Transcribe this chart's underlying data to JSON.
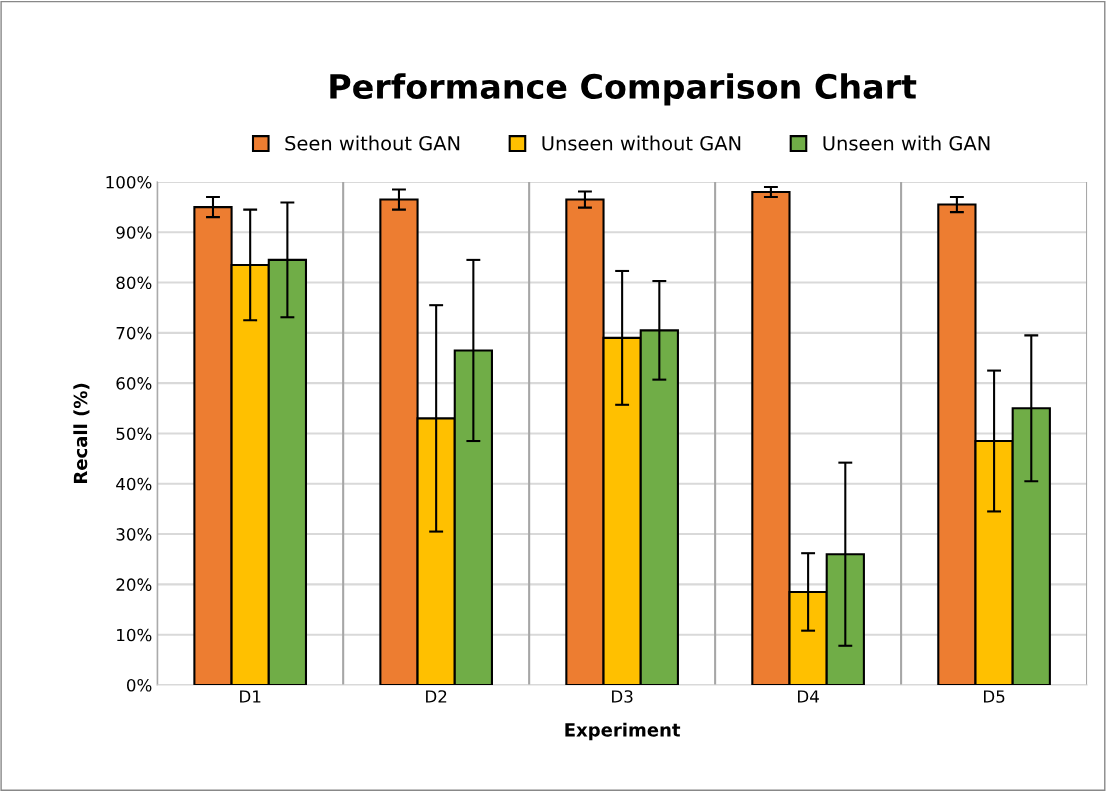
{
  "chart_data": {
    "type": "bar",
    "title": "Performance Comparison Chart",
    "xlabel": "Experiment",
    "ylabel": "Recall (%)",
    "categories": [
      "D1",
      "D2",
      "D3",
      "D4",
      "D5"
    ],
    "series": [
      {
        "name": "Seen without GAN",
        "color": "#ed7d31",
        "values": [
          95,
          96.5,
          96.5,
          98,
          95.5
        ],
        "errors": [
          2,
          2,
          1.6,
          1,
          1.5
        ]
      },
      {
        "name": "Unseen without GAN",
        "color": "#ffc000",
        "values": [
          83.5,
          53,
          69,
          18.5,
          48.5
        ],
        "errors": [
          11,
          22.5,
          13.3,
          7.7,
          14
        ]
      },
      {
        "name": "Unseen with GAN",
        "color": "#70ad47",
        "values": [
          84.5,
          66.5,
          70.5,
          26,
          55
        ],
        "errors": [
          11.4,
          18,
          9.8,
          18.2,
          14.5
        ]
      }
    ],
    "ylim": [
      0,
      100
    ],
    "yticks": [
      {
        "value": 0,
        "label": "0%"
      },
      {
        "value": 10,
        "label": "10%"
      },
      {
        "value": 20,
        "label": "20%"
      },
      {
        "value": 30,
        "label": "30%"
      },
      {
        "value": 40,
        "label": "40%"
      },
      {
        "value": 50,
        "label": "50%"
      },
      {
        "value": 60,
        "label": "60%"
      },
      {
        "value": 70,
        "label": "70%"
      },
      {
        "value": 80,
        "label": "80%"
      },
      {
        "value": 90,
        "label": "90%"
      },
      {
        "value": 100,
        "label": "100%"
      }
    ],
    "grid": true,
    "legend": "top"
  }
}
